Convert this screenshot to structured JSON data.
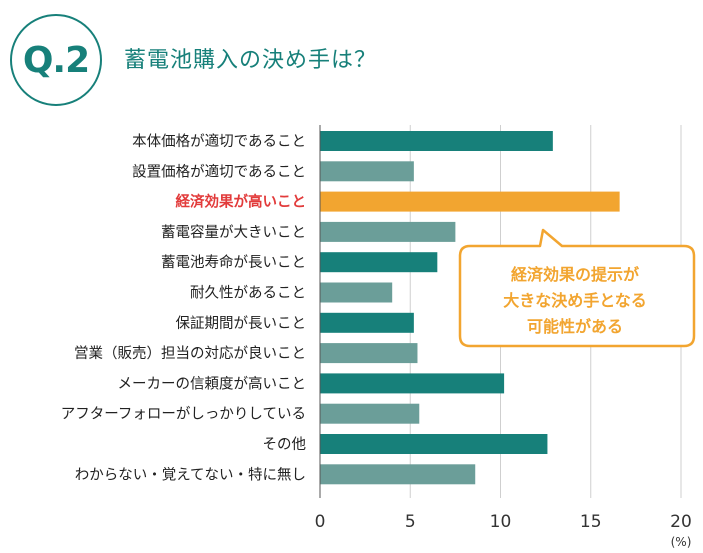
{
  "header": {
    "badge": "Q.2",
    "title": "蓄電池購入の決め手は？"
  },
  "callout": {
    "lines": [
      "経済効果の提示が",
      "大きな決め手となる",
      "可能性がある"
    ]
  },
  "colors": {
    "teal": "#17807a",
    "teal_light": "#6b9e99",
    "highlight": "#f2a530",
    "highlight_label": "#e23b3b",
    "grid": "#cfcfcf"
  },
  "chart_data": {
    "type": "bar",
    "orientation": "horizontal",
    "title": "蓄電池購入の決め手は？",
    "categories": [
      "本体価格が適切であること",
      "設置価格が適切であること",
      "経済効果が高いこと",
      "蓄電容量が大きいこと",
      "蓄電池寿命が長いこと",
      "耐久性があること",
      "保証期間が長いこと",
      "営業（販売）担当の対応が良いこと",
      "メーカーの信頼度が高いこと",
      "アフターフォローがしっかりしている",
      "その他",
      "わからない・覚えてない・特に無し"
    ],
    "values": [
      12.9,
      5.2,
      16.6,
      7.5,
      6.5,
      4.0,
      5.2,
      5.4,
      10.2,
      5.5,
      12.6,
      8.6
    ],
    "highlight_index": 2,
    "xlim": [
      0,
      20
    ],
    "xticks": [
      0,
      5,
      10,
      15,
      20
    ],
    "xticklabels": [
      "0",
      "5",
      "10",
      "15",
      "20"
    ],
    "unit": "(%)",
    "grid": true
  }
}
